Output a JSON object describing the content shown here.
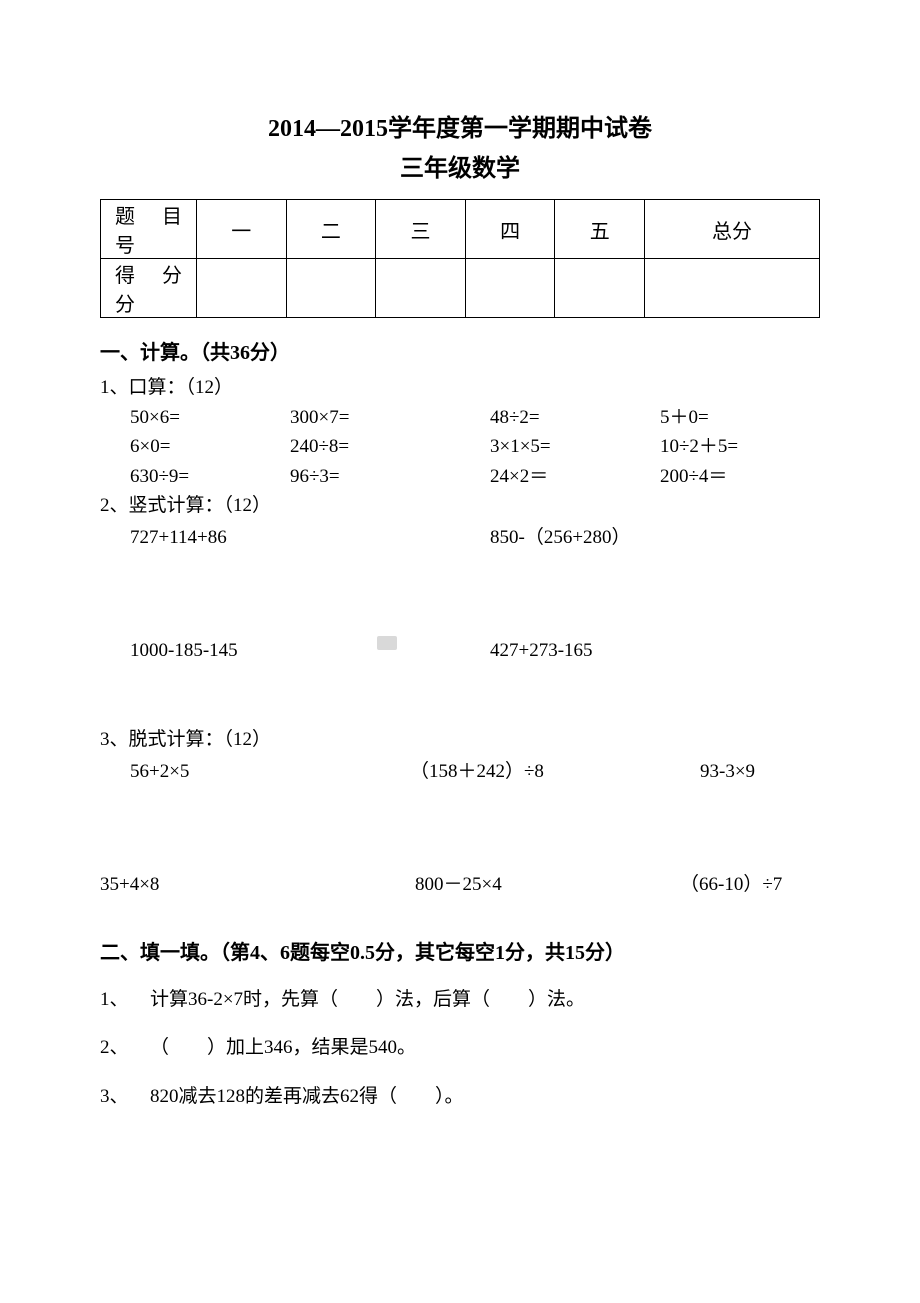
{
  "title_line1": "2014—2015学年度第一学期期中试卷",
  "title_line2": "三年级数学",
  "score_table": {
    "row_header_1": "题目　号",
    "row_header_2": "得分　分",
    "cols": [
      "一",
      "二",
      "三",
      "四",
      "五",
      "总分"
    ]
  },
  "section1": {
    "heading": "一、计算。（共36分）",
    "q1_label": "1、口算：（12）",
    "q1_rows": [
      [
        "50×6=",
        "300×7=",
        "48÷2=",
        "5＋0="
      ],
      [
        "6×0=",
        "240÷8=",
        "3×1×5=",
        "10÷2＋5="
      ],
      [
        "630÷9=",
        "96÷3=",
        "24×2＝",
        "200÷4＝"
      ]
    ],
    "q2_label": "2、竖式计算：（12）",
    "q2_rows": [
      [
        "727+114+86",
        "850-（256+280）"
      ],
      [
        "1000-185-145",
        "427+273-165"
      ]
    ],
    "q3_label": "3、脱式计算：（12）",
    "q3_row1": [
      "56+2×5",
      "（158＋242）÷8",
      "93-3×9"
    ],
    "q3_row2": [
      "35+4×8",
      "800－25×4",
      "（66-10）÷7"
    ]
  },
  "section2": {
    "heading": "二、填一填。（第4、6题每空0.5分，其它每空1分，共15分）",
    "items": [
      {
        "n": "1、",
        "text": "计算36-2×7时，先算（　　）法，后算（　　）法。"
      },
      {
        "n": "2、",
        "text": "（　　）加上346，结果是540。"
      },
      {
        "n": "3、",
        "text": "820减去128的差再减去62得（　　）。"
      }
    ]
  }
}
